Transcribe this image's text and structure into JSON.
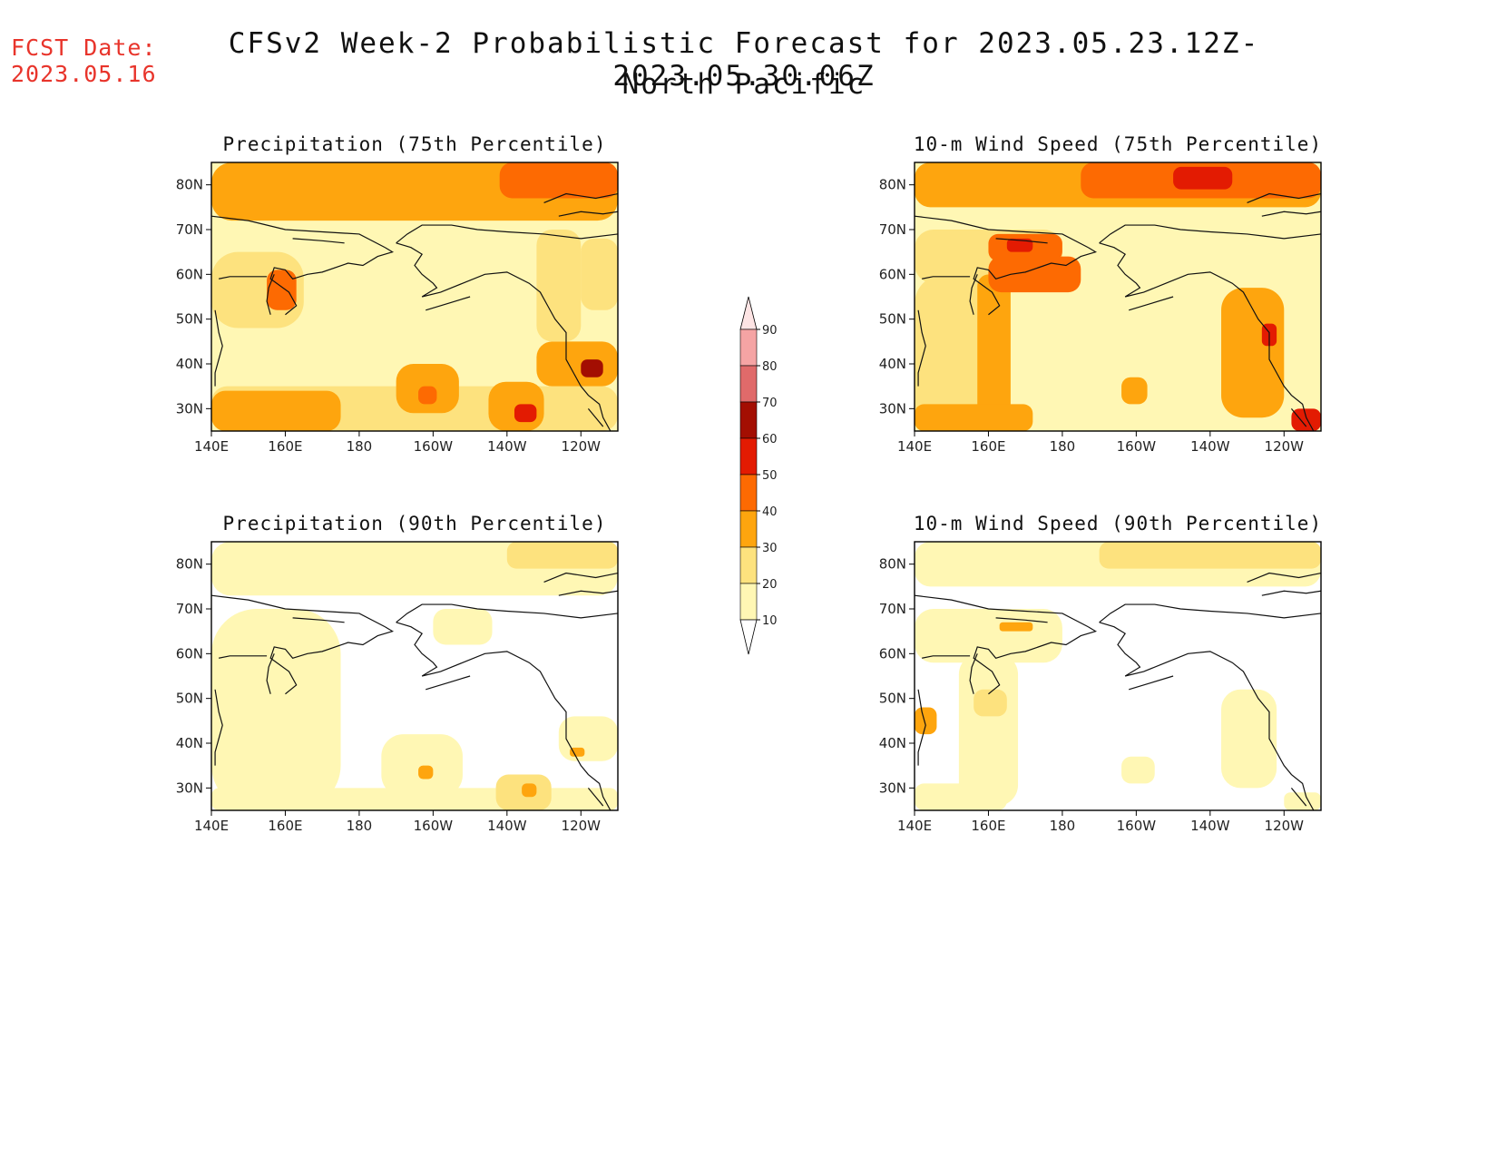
{
  "header": {
    "fcst_label": "FCST Date:",
    "fcst_date": "2023.05.16",
    "title": "CFSv2 Week-2 Probabilistic Forecast for 2023.05.23.12Z-2023.05.30.06Z",
    "subtitle": "North Pacific"
  },
  "colors": {
    "levels": [
      "#ffffff",
      "#fff7b4",
      "#fde27e",
      "#fea50e",
      "#fd6a02",
      "#e31b02",
      "#a30e02",
      "#e06a6a",
      "#f5a4a4",
      "#fde4e4"
    ],
    "coast": "#111111"
  },
  "colorbar": {
    "labels": [
      "10",
      "20",
      "30",
      "40",
      "50",
      "60",
      "70",
      "80",
      "90"
    ]
  },
  "chart_data": [
    {
      "type": "heatmap",
      "title": "Precipitation (75th Percentile)",
      "variable": "precipitation",
      "percentile": 75,
      "x_ticks": [
        "140E",
        "160E",
        "180",
        "160W",
        "140W",
        "120W"
      ],
      "y_ticks": [
        "80N",
        "70N",
        "60N",
        "50N",
        "40N",
        "30N"
      ],
      "xlim": [
        140,
        250
      ],
      "ylim": [
        25,
        85
      ],
      "units": "probability (%)",
      "base_level": 15,
      "zones": [
        {
          "lon_min": 140,
          "lon_max": 250,
          "lat_min": 72,
          "lat_max": 85,
          "value": 35
        },
        {
          "lon_min": 218,
          "lon_max": 250,
          "lat_min": 77,
          "lat_max": 85,
          "value": 45
        },
        {
          "lon_min": 140,
          "lon_max": 165,
          "lat_min": 48,
          "lat_max": 65,
          "value": 25
        },
        {
          "lon_min": 155,
          "lon_max": 163,
          "lat_min": 52,
          "lat_max": 61,
          "value": 42
        },
        {
          "lon_min": 140,
          "lon_max": 250,
          "lat_min": 25,
          "lat_max": 35,
          "value": 25
        },
        {
          "lon_min": 140,
          "lon_max": 175,
          "lat_min": 25,
          "lat_max": 34,
          "value": 33
        },
        {
          "lon_min": 190,
          "lon_max": 207,
          "lat_min": 29,
          "lat_max": 40,
          "value": 37
        },
        {
          "lon_min": 196,
          "lon_max": 201,
          "lat_min": 31,
          "lat_max": 35,
          "value": 45
        },
        {
          "lon_min": 215,
          "lon_max": 230,
          "lat_min": 25,
          "lat_max": 36,
          "value": 38
        },
        {
          "lon_min": 222,
          "lon_max": 228,
          "lat_min": 27,
          "lat_max": 31,
          "value": 52
        },
        {
          "lon_min": 228,
          "lon_max": 250,
          "lat_min": 35,
          "lat_max": 45,
          "value": 38
        },
        {
          "lon_min": 240,
          "lon_max": 246,
          "lat_min": 37,
          "lat_max": 41,
          "value": 62
        },
        {
          "lon_min": 228,
          "lon_max": 240,
          "lat_min": 45,
          "lat_max": 70,
          "value": 25
        },
        {
          "lon_min": 240,
          "lon_max": 250,
          "lat_min": 52,
          "lat_max": 68,
          "value": 25
        },
        {
          "lon_min": 176,
          "lon_max": 210,
          "lat_min": 42,
          "lat_max": 56,
          "value": 12
        }
      ]
    },
    {
      "type": "heatmap",
      "title": "10-m Wind Speed (75th Percentile)",
      "variable": "10-m wind speed",
      "percentile": 75,
      "x_ticks": [
        "140E",
        "160E",
        "180",
        "160W",
        "140W",
        "120W"
      ],
      "y_ticks": [
        "80N",
        "70N",
        "60N",
        "50N",
        "40N",
        "30N"
      ],
      "xlim": [
        140,
        250
      ],
      "ylim": [
        25,
        85
      ],
      "units": "probability (%)",
      "base_level": 15,
      "zones": [
        {
          "lon_min": 140,
          "lon_max": 250,
          "lat_min": 75,
          "lat_max": 85,
          "value": 35
        },
        {
          "lon_min": 185,
          "lon_max": 250,
          "lat_min": 77,
          "lat_max": 85,
          "value": 45
        },
        {
          "lon_min": 210,
          "lon_max": 226,
          "lat_min": 79,
          "lat_max": 84,
          "value": 55
        },
        {
          "lon_min": 140,
          "lon_max": 180,
          "lat_min": 58,
          "lat_max": 70,
          "value": 25
        },
        {
          "lon_min": 160,
          "lon_max": 180,
          "lat_min": 63,
          "lat_max": 69,
          "value": 45
        },
        {
          "lon_min": 165,
          "lon_max": 172,
          "lat_min": 65,
          "lat_max": 68,
          "value": 55
        },
        {
          "lon_min": 140,
          "lon_max": 163,
          "lat_min": 25,
          "lat_max": 60,
          "value": 25
        },
        {
          "lon_min": 157,
          "lon_max": 166,
          "lat_min": 28,
          "lat_max": 60,
          "value": 35
        },
        {
          "lon_min": 140,
          "lon_max": 172,
          "lat_min": 25,
          "lat_max": 31,
          "value": 35
        },
        {
          "lon_min": 160,
          "lon_max": 185,
          "lat_min": 56,
          "lat_max": 64,
          "value": 42
        },
        {
          "lon_min": 223,
          "lon_max": 240,
          "lat_min": 28,
          "lat_max": 57,
          "value": 33
        },
        {
          "lon_min": 234,
          "lon_max": 238,
          "lat_min": 44,
          "lat_max": 49,
          "value": 50
        },
        {
          "lon_min": 242,
          "lon_max": 250,
          "lat_min": 25,
          "lat_max": 30,
          "value": 55
        },
        {
          "lon_min": 196,
          "lon_max": 203,
          "lat_min": 31,
          "lat_max": 37,
          "value": 32
        },
        {
          "lon_min": 178,
          "lon_max": 222,
          "lat_min": 38,
          "lat_max": 56,
          "value": 12
        }
      ]
    },
    {
      "type": "heatmap",
      "title": "Precipitation (90th Percentile)",
      "variable": "precipitation",
      "percentile": 90,
      "x_ticks": [
        "140E",
        "160E",
        "180",
        "160W",
        "140W",
        "120W"
      ],
      "y_ticks": [
        "80N",
        "70N",
        "60N",
        "50N",
        "40N",
        "30N"
      ],
      "xlim": [
        140,
        250
      ],
      "ylim": [
        25,
        85
      ],
      "units": "probability (%)",
      "base_level": 5,
      "zones": [
        {
          "lon_min": 140,
          "lon_max": 250,
          "lat_min": 73,
          "lat_max": 85,
          "value": 15
        },
        {
          "lon_min": 220,
          "lon_max": 250,
          "lat_min": 79,
          "lat_max": 85,
          "value": 25
        },
        {
          "lon_min": 140,
          "lon_max": 175,
          "lat_min": 25,
          "lat_max": 70,
          "value": 15
        },
        {
          "lon_min": 140,
          "lon_max": 250,
          "lat_min": 25,
          "lat_max": 30,
          "value": 15
        },
        {
          "lon_min": 186,
          "lon_max": 208,
          "lat_min": 28,
          "lat_max": 42,
          "value": 15
        },
        {
          "lon_min": 196,
          "lon_max": 200,
          "lat_min": 32,
          "lat_max": 35,
          "value": 35
        },
        {
          "lon_min": 217,
          "lon_max": 232,
          "lat_min": 25,
          "lat_max": 33,
          "value": 25
        },
        {
          "lon_min": 224,
          "lon_max": 228,
          "lat_min": 28,
          "lat_max": 31,
          "value": 35
        },
        {
          "lon_min": 234,
          "lon_max": 250,
          "lat_min": 36,
          "lat_max": 46,
          "value": 15
        },
        {
          "lon_min": 237,
          "lon_max": 241,
          "lat_min": 37,
          "lat_max": 39,
          "value": 35
        },
        {
          "lon_min": 200,
          "lon_max": 216,
          "lat_min": 62,
          "lat_max": 70,
          "value": 15
        }
      ]
    },
    {
      "type": "heatmap",
      "title": "10-m Wind Speed (90th Percentile)",
      "variable": "10-m wind speed",
      "percentile": 90,
      "x_ticks": [
        "140E",
        "160E",
        "180",
        "160W",
        "140W",
        "120W"
      ],
      "y_ticks": [
        "80N",
        "70N",
        "60N",
        "50N",
        "40N",
        "30N"
      ],
      "xlim": [
        140,
        250
      ],
      "ylim": [
        25,
        85
      ],
      "units": "probability (%)",
      "base_level": 5,
      "zones": [
        {
          "lon_min": 140,
          "lon_max": 250,
          "lat_min": 75,
          "lat_max": 85,
          "value": 15
        },
        {
          "lon_min": 190,
          "lon_max": 250,
          "lat_min": 79,
          "lat_max": 85,
          "value": 25
        },
        {
          "lon_min": 140,
          "lon_max": 180,
          "lat_min": 58,
          "lat_max": 70,
          "value": 15
        },
        {
          "lon_min": 163,
          "lon_max": 172,
          "lat_min": 65,
          "lat_max": 67,
          "value": 35
        },
        {
          "lon_min": 152,
          "lon_max": 168,
          "lat_min": 26,
          "lat_max": 60,
          "value": 15
        },
        {
          "lon_min": 156,
          "lon_max": 165,
          "lat_min": 46,
          "lat_max": 52,
          "value": 25
        },
        {
          "lon_min": 140,
          "lon_max": 165,
          "lat_min": 25,
          "lat_max": 31,
          "value": 15
        },
        {
          "lon_min": 140,
          "lon_max": 146,
          "lat_min": 42,
          "lat_max": 48,
          "value": 35
        },
        {
          "lon_min": 223,
          "lon_max": 238,
          "lat_min": 30,
          "lat_max": 52,
          "value": 15
        },
        {
          "lon_min": 240,
          "lon_max": 250,
          "lat_min": 25,
          "lat_max": 29,
          "value": 15
        },
        {
          "lon_min": 196,
          "lon_max": 205,
          "lat_min": 31,
          "lat_max": 37,
          "value": 15
        }
      ]
    }
  ]
}
